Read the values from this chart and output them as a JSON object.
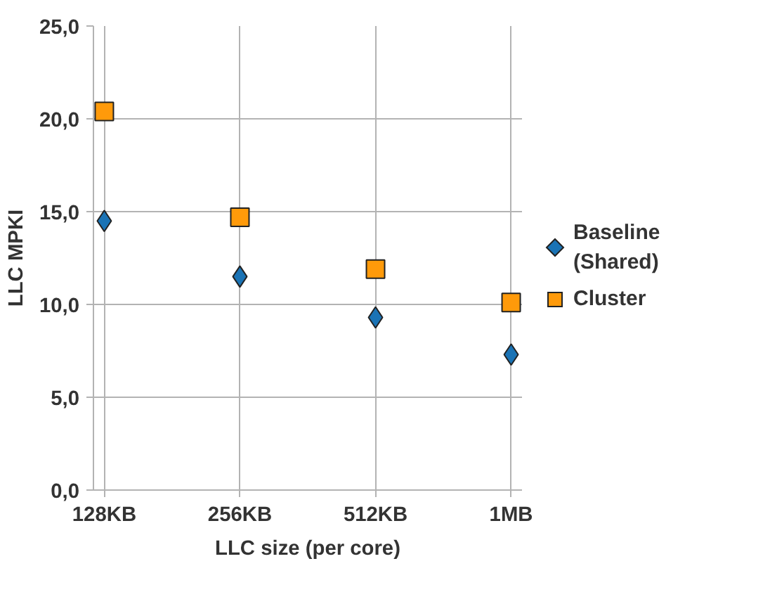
{
  "chart_data": {
    "type": "scatter",
    "xlabel": "LLC size (per core)",
    "ylabel": "LLC MPKI",
    "categories": [
      "128KB",
      "256KB",
      "512KB",
      "1MB"
    ],
    "ylim": [
      0,
      25
    ],
    "yticks": [
      {
        "value": 0,
        "label": "0,0"
      },
      {
        "value": 5,
        "label": "5,0"
      },
      {
        "value": 10,
        "label": "10,0"
      },
      {
        "value": 15,
        "label": "15,0"
      },
      {
        "value": 20,
        "label": "20,0"
      },
      {
        "value": 25,
        "label": "25,0"
      }
    ],
    "grid": true,
    "legend": "right",
    "series": [
      {
        "name": "Baseline (Shared)",
        "color": "#1a73b5",
        "marker": "diamond",
        "values": [
          14.5,
          11.5,
          9.3,
          7.3
        ]
      },
      {
        "name": "Cluster",
        "color": "#ff9a0a",
        "marker": "square",
        "values": [
          20.4,
          14.7,
          11.9,
          10.1
        ]
      }
    ]
  }
}
